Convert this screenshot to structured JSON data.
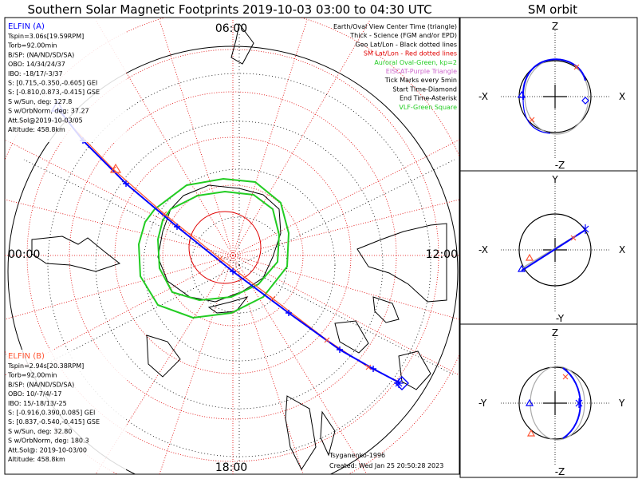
{
  "title": "Southern Solar Magnetic Footprints 2019-10-03 03:00 to 04:30 UTC",
  "sm_orbit_title": "SM orbit",
  "mlt_labels": {
    "top": "06:00",
    "left": "00:00",
    "right": "12:00",
    "bottom": "18:00"
  },
  "legend": [
    {
      "text": "Earth/Oval View Center Time (triangle)",
      "color": "#000000"
    },
    {
      "text": "Thick - Science (FGM and/or EPD)",
      "color": "#000000"
    },
    {
      "text": "Geo Lat/Lon - Black dotted lines",
      "color": "#000000"
    },
    {
      "text": "SM Lat/Lon - Red dotted lines",
      "color": "#e00000"
    },
    {
      "text": "Auroral Oval-Green, kp=2",
      "color": "#22cc22"
    },
    {
      "text": "EISCAT-Purple Triangle",
      "color": "#cc66cc"
    },
    {
      "text": "Tick Marks every 5min",
      "color": "#000000"
    },
    {
      "text": "Start Time-Diamond",
      "color": "#000000"
    },
    {
      "text": "End Time-Asterisk",
      "color": "#000000"
    },
    {
      "text": "VLF-Green Square",
      "color": "#22cc22"
    }
  ],
  "elfin_a": {
    "name": "ELFIN (A)",
    "color": "#0000ff",
    "lines": [
      "Tspin=3.06s[19.59RPM]",
      "Torb=92.00min",
      "B/SP: (NA/ND/SD/SA)",
      "OBO: 14/34/24/37",
      "IBO: -18/17/-3/37",
      "S: [0.715,-0.350,-0.605] GEI",
      "S: [-0.810,0.873,-0.415] GSE",
      "S w/Sun, deg: 127.8",
      "S w/OrbNorm, deg: 37.27",
      "Att.Sol@2019-10-03/05",
      "Altitude: 458.8km"
    ]
  },
  "elfin_b": {
    "name": "ELFIN (B)",
    "color": "#ff5533",
    "lines": [
      "Tspin=2.94s[20.38RPM]",
      "Torb=92.00min",
      "B/SP: (NA/ND/SD/SA)",
      "OBO: 10/-7/4/-17",
      "IBO: 15/-18/13/-25",
      "S: [-0.916,0.390,0.085] GEI",
      "S: [0.837,-0.540,-0.415] GSE",
      "S w/Sun, deg: 32.80",
      "S w/OrbNorm, deg: 180.3",
      "Att.Sol@: 2019-10-03/00",
      "Altitude: 458.8km"
    ]
  },
  "credits": {
    "author": "Tsyganenko-1996",
    "created": "Created: Wed Jan 25 20:50:28 2023"
  },
  "orbit_panels": [
    {
      "top": "Z",
      "bottom": "-Z",
      "left": "-X",
      "right": "X"
    },
    {
      "top": "Y",
      "bottom": "-Y",
      "left": "-X",
      "right": "X"
    },
    {
      "top": "Z",
      "bottom": "-Z",
      "left": "-Y",
      "right": "Y"
    }
  ],
  "colors": {
    "elfin_a": "#0000ff",
    "elfin_b": "#ff5533",
    "sm_grid": "#e00000",
    "geo_grid": "#000000",
    "oval": "#22cc22"
  },
  "chart_data": {
    "type": "polar-map",
    "title": "Southern Solar Magnetic Footprints 2019-10-03 03:00 to 04:30 UTC",
    "mlt_axis": [
      "00:00",
      "06:00",
      "12:00",
      "18:00"
    ],
    "series": [
      {
        "name": "ELFIN (A)",
        "color": "#0000ff"
      },
      {
        "name": "ELFIN (B)",
        "color": "#ff5533"
      }
    ],
    "kp": 2
  }
}
